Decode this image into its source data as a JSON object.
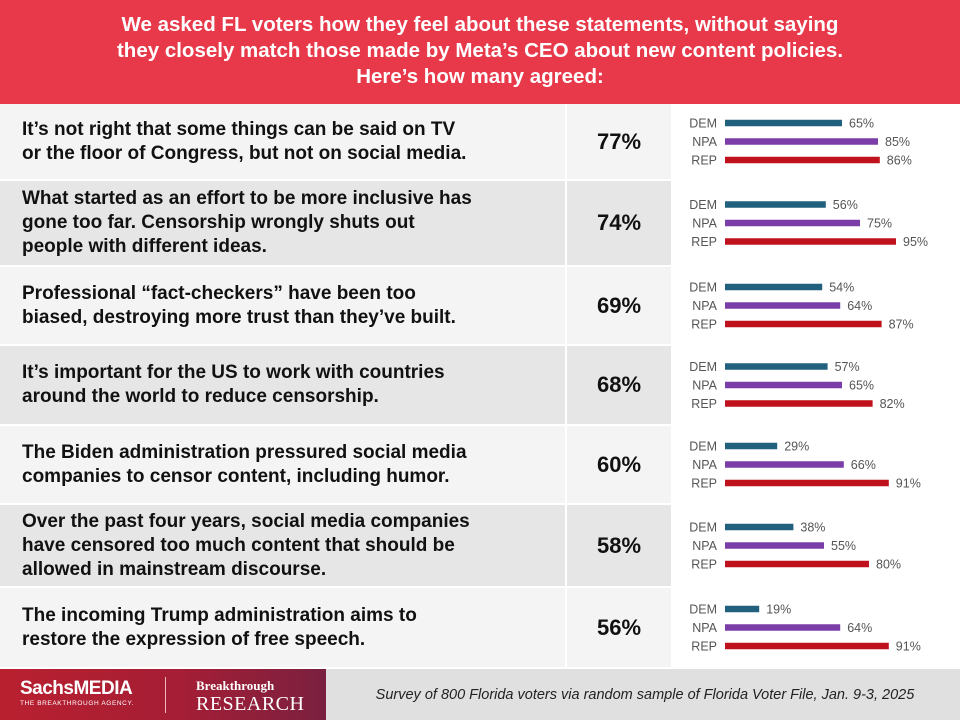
{
  "header": {
    "lines": [
      "We asked FL voters how they feel about these statements, without saying",
      "they closely match those made by Meta’s CEO about new content policies.",
      "Here’s how many agreed:"
    ]
  },
  "colors": {
    "header_bg": "#e8394a",
    "DEM": "#22617e",
    "NPA": "#7b3ea8",
    "REP": "#c0121c"
  },
  "chart_data": {
    "type": "bar",
    "orientation": "horizontal",
    "title": "We asked FL voters how they feel about these statements, without saying they closely match those made by Meta’s CEO about new content policies. Here’s how many agreed:",
    "series_names": [
      "DEM",
      "NPA",
      "REP"
    ],
    "xlim": [
      0,
      100
    ],
    "unit": "%",
    "rows": [
      {
        "statement_lines": [
          "It’s not right that some things can be said on TV",
          "or the floor of Congress, but not on social media."
        ],
        "overall": "77%",
        "values": [
          65,
          85,
          86
        ]
      },
      {
        "statement_lines": [
          "What started as an effort to be more inclusive has",
          "gone too far. Censorship wrongly shuts out",
          "people with different ideas."
        ],
        "overall": "74%",
        "values": [
          56,
          75,
          95
        ]
      },
      {
        "statement_lines": [
          "Professional “fact-checkers” have been too",
          "biased, destroying more trust than they’ve built."
        ],
        "overall": "69%",
        "values": [
          54,
          64,
          87
        ]
      },
      {
        "statement_lines": [
          "It’s important for the US to work with countries",
          "around the world to reduce censorship."
        ],
        "overall": "68%",
        "values": [
          57,
          65,
          82
        ]
      },
      {
        "statement_lines": [
          "The Biden administration pressured social media",
          "companies to censor content, including humor."
        ],
        "overall": "60%",
        "values": [
          29,
          66,
          91
        ]
      },
      {
        "statement_lines": [
          "Over the past four years, social media companies",
          "have censored too much content that should be",
          "allowed in mainstream discourse."
        ],
        "overall": "58%",
        "values": [
          38,
          55,
          80
        ]
      },
      {
        "statement_lines": [
          "The incoming Trump administration aims to",
          "restore the expression of free speech."
        ],
        "overall": "56%",
        "values": [
          19,
          64,
          91
        ]
      }
    ]
  },
  "footer": {
    "logo_sachs": "SachsMEDIA",
    "logo_tagline": "THE BREAKTHROUGH AGENCY.",
    "logo_breakthrough": "Breakthrough",
    "logo_research": "RESEARCH",
    "source": "Survey of 800 Florida voters via random sample of Florida Voter File, Jan. 9-3, 2025"
  }
}
